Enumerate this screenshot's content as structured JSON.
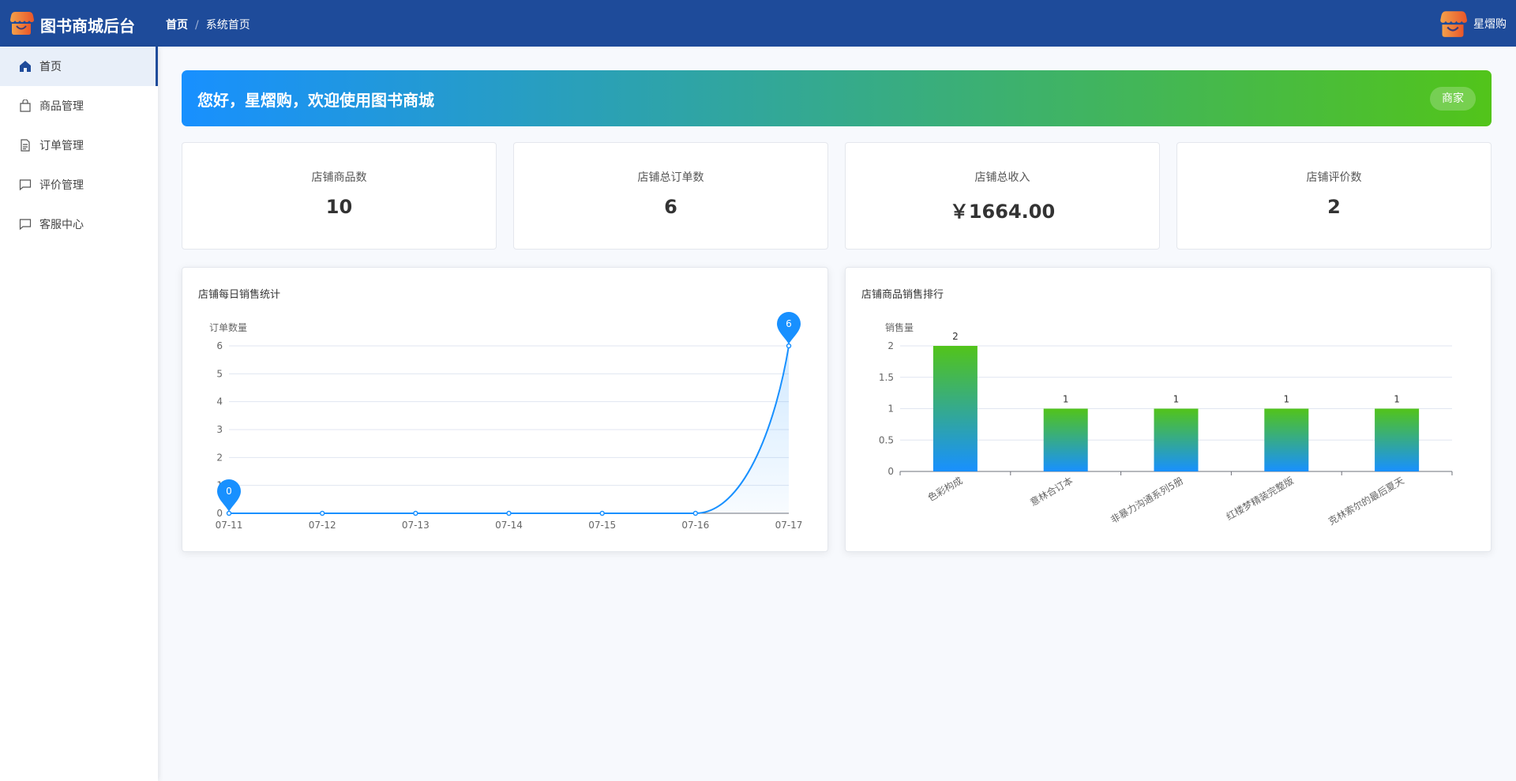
{
  "header": {
    "app_title": "图书商城后台",
    "breadcrumb": [
      "首页",
      "系统首页"
    ],
    "user_name": "星熠购",
    "logo_icon": "shop-icon",
    "bg_color": "#1e4b9a"
  },
  "sidebar": {
    "items": [
      {
        "label": "首页",
        "icon": "home-icon",
        "active": true
      },
      {
        "label": "商品管理",
        "icon": "bag-icon"
      },
      {
        "label": "订单管理",
        "icon": "document-icon"
      },
      {
        "label": "评价管理",
        "icon": "chat-icon"
      },
      {
        "label": "客服中心",
        "icon": "chat-icon"
      }
    ]
  },
  "banner": {
    "greeting": "您好，星熠购，欢迎使用图书商城",
    "role_badge": "商家",
    "gradient": [
      "#1890ff",
      "#52c41a"
    ]
  },
  "stats": [
    {
      "label": "店铺商品数",
      "value": "10"
    },
    {
      "label": "店铺总订单数",
      "value": "6"
    },
    {
      "label": "店铺总收入",
      "value": "￥1664.00"
    },
    {
      "label": "店铺评价数",
      "value": "2"
    }
  ],
  "chart_data": [
    {
      "type": "line",
      "title": "店铺每日销售统计",
      "ylabel": "订单数量",
      "categories": [
        "07-11",
        "07-12",
        "07-13",
        "07-14",
        "07-15",
        "07-16",
        "07-17"
      ],
      "values": [
        0,
        0,
        0,
        0,
        0,
        0,
        6
      ],
      "ylim": [
        0,
        6
      ],
      "yticks": [
        0,
        1,
        2,
        3,
        4,
        5,
        6
      ],
      "smooth": true,
      "area": true,
      "grid": true,
      "mark_points": [
        {
          "label": "0",
          "category": "07-11",
          "value": 0
        },
        {
          "label": "6",
          "category": "07-17",
          "value": 6
        }
      ],
      "color": "#1890ff"
    },
    {
      "type": "bar",
      "title": "店铺商品销售排行",
      "ylabel": "销售量",
      "categories": [
        "色彩构成",
        "意林合订本",
        "非暴力沟通系列5册",
        "红楼梦精装完整版",
        "克林索尔的最后夏天"
      ],
      "values": [
        2,
        1,
        1,
        1,
        1
      ],
      "ylim": [
        0,
        2
      ],
      "yticks": [
        0,
        0.5,
        1,
        1.5,
        2
      ],
      "grid": true,
      "data_labels": true,
      "gradient": [
        "#52c41a",
        "#1890ff"
      ]
    }
  ]
}
